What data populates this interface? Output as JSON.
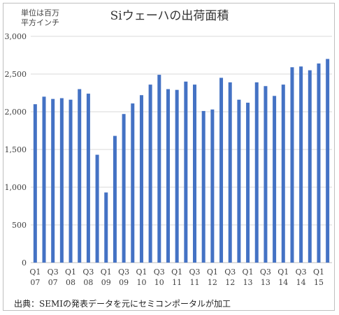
{
  "chart_data": {
    "type": "bar",
    "title": "Siウェーハの出荷面積",
    "unit_label_lines": [
      "単位は百万",
      "平方インチ"
    ],
    "source": "出典：SEMIの発表データを元にセミコンポータルが加工",
    "ylim": [
      0,
      3000
    ],
    "yticks": [
      "0",
      "500",
      "1,000",
      "1,500",
      "2,000",
      "2,500",
      "3,000"
    ],
    "ytick_values": [
      0,
      500,
      1000,
      1500,
      2000,
      2500,
      3000
    ],
    "grid": "horizontal",
    "color": "#4472C4",
    "categories": [
      "Q1 07",
      "Q2 07",
      "Q3 07",
      "Q4 07",
      "Q1 08",
      "Q2 08",
      "Q3 08",
      "Q4 08",
      "Q1 09",
      "Q2 09",
      "Q3 09",
      "Q4 09",
      "Q1 10",
      "Q2 10",
      "Q3 10",
      "Q4 10",
      "Q1 11",
      "Q2 11",
      "Q3 11",
      "Q4 11",
      "Q1 12",
      "Q2 12",
      "Q3 12",
      "Q4 12",
      "Q1 13",
      "Q2 13",
      "Q3 13",
      "Q4 13",
      "Q1 14",
      "Q2 14",
      "Q3 14",
      "Q4 14",
      "Q1 15",
      "Q2 15"
    ],
    "values": [
      2100,
      2200,
      2170,
      2180,
      2160,
      2300,
      2240,
      1430,
      930,
      1680,
      1970,
      2110,
      2220,
      2360,
      2490,
      2300,
      2290,
      2400,
      2360,
      2010,
      2030,
      2450,
      2390,
      2160,
      2120,
      2390,
      2340,
      2210,
      2360,
      2590,
      2600,
      2550,
      2640,
      2700
    ],
    "xtick_labels": [
      {
        "q": "Q1",
        "y": "07",
        "index": 0
      },
      {
        "q": "Q3",
        "y": "07",
        "index": 2
      },
      {
        "q": "Q1",
        "y": "08",
        "index": 4
      },
      {
        "q": "Q3",
        "y": "08",
        "index": 6
      },
      {
        "q": "Q1",
        "y": "09",
        "index": 8
      },
      {
        "q": "Q3",
        "y": "09",
        "index": 10
      },
      {
        "q": "Q1",
        "y": "10",
        "index": 12
      },
      {
        "q": "Q3",
        "y": "10",
        "index": 14
      },
      {
        "q": "Q1",
        "y": "11",
        "index": 16
      },
      {
        "q": "Q3",
        "y": "11",
        "index": 18
      },
      {
        "q": "Q1",
        "y": "12",
        "index": 20
      },
      {
        "q": "Q3",
        "y": "12",
        "index": 22
      },
      {
        "q": "Q1",
        "y": "13",
        "index": 24
      },
      {
        "q": "Q3",
        "y": "13",
        "index": 26
      },
      {
        "q": "Q1",
        "y": "14",
        "index": 28
      },
      {
        "q": "Q3",
        "y": "14",
        "index": 30
      },
      {
        "q": "Q1",
        "y": "15",
        "index": 32
      }
    ]
  }
}
